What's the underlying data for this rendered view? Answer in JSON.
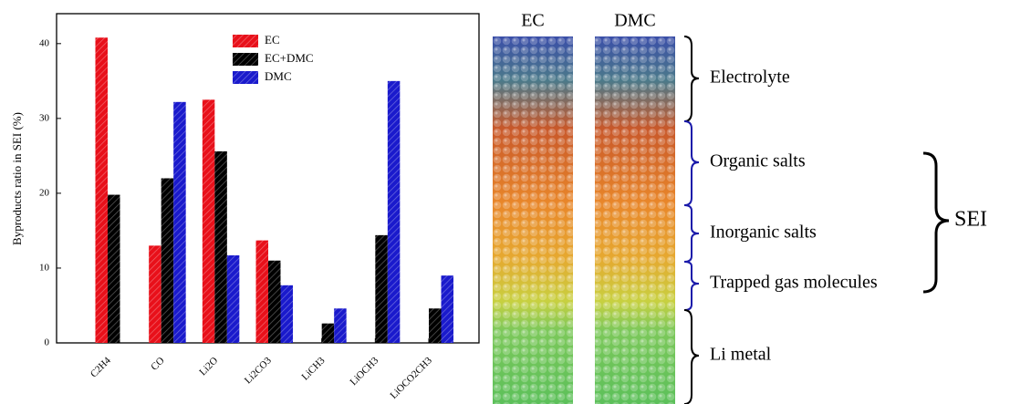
{
  "chart_data": {
    "type": "bar",
    "y_label": "Byproducts ratio in SEI (%)",
    "categories": [
      "C2H4",
      "CO",
      "Li2O",
      "Li2CO3",
      "LiCH3",
      "LiOCH3",
      "LiOCO2CH3"
    ],
    "series": [
      {
        "name": "EC",
        "color": "#e8101a",
        "values": [
          40.8,
          13,
          32.5,
          13.7,
          0,
          0,
          0
        ]
      },
      {
        "name": "EC+DMC",
        "color": "#000000",
        "values": [
          19.8,
          22,
          25.6,
          11,
          2.6,
          14.4,
          4.6
        ]
      },
      {
        "name": "DMC",
        "color": "#1a1acc",
        "values": [
          0,
          32.2,
          11.7,
          7.7,
          4.6,
          35,
          9
        ]
      }
    ],
    "ylim": [
      0,
      44
    ],
    "yticks": [
      0,
      10,
      20,
      30,
      40
    ],
    "legend_position": "upper center",
    "hatch": true
  },
  "diagram": {
    "columns": [
      "EC",
      "DMC"
    ],
    "regions": [
      "Electrolyte",
      "Organic salts",
      "Inorganic salts",
      "Trapped gas molecules",
      "Li metal"
    ],
    "group": "SEI"
  }
}
